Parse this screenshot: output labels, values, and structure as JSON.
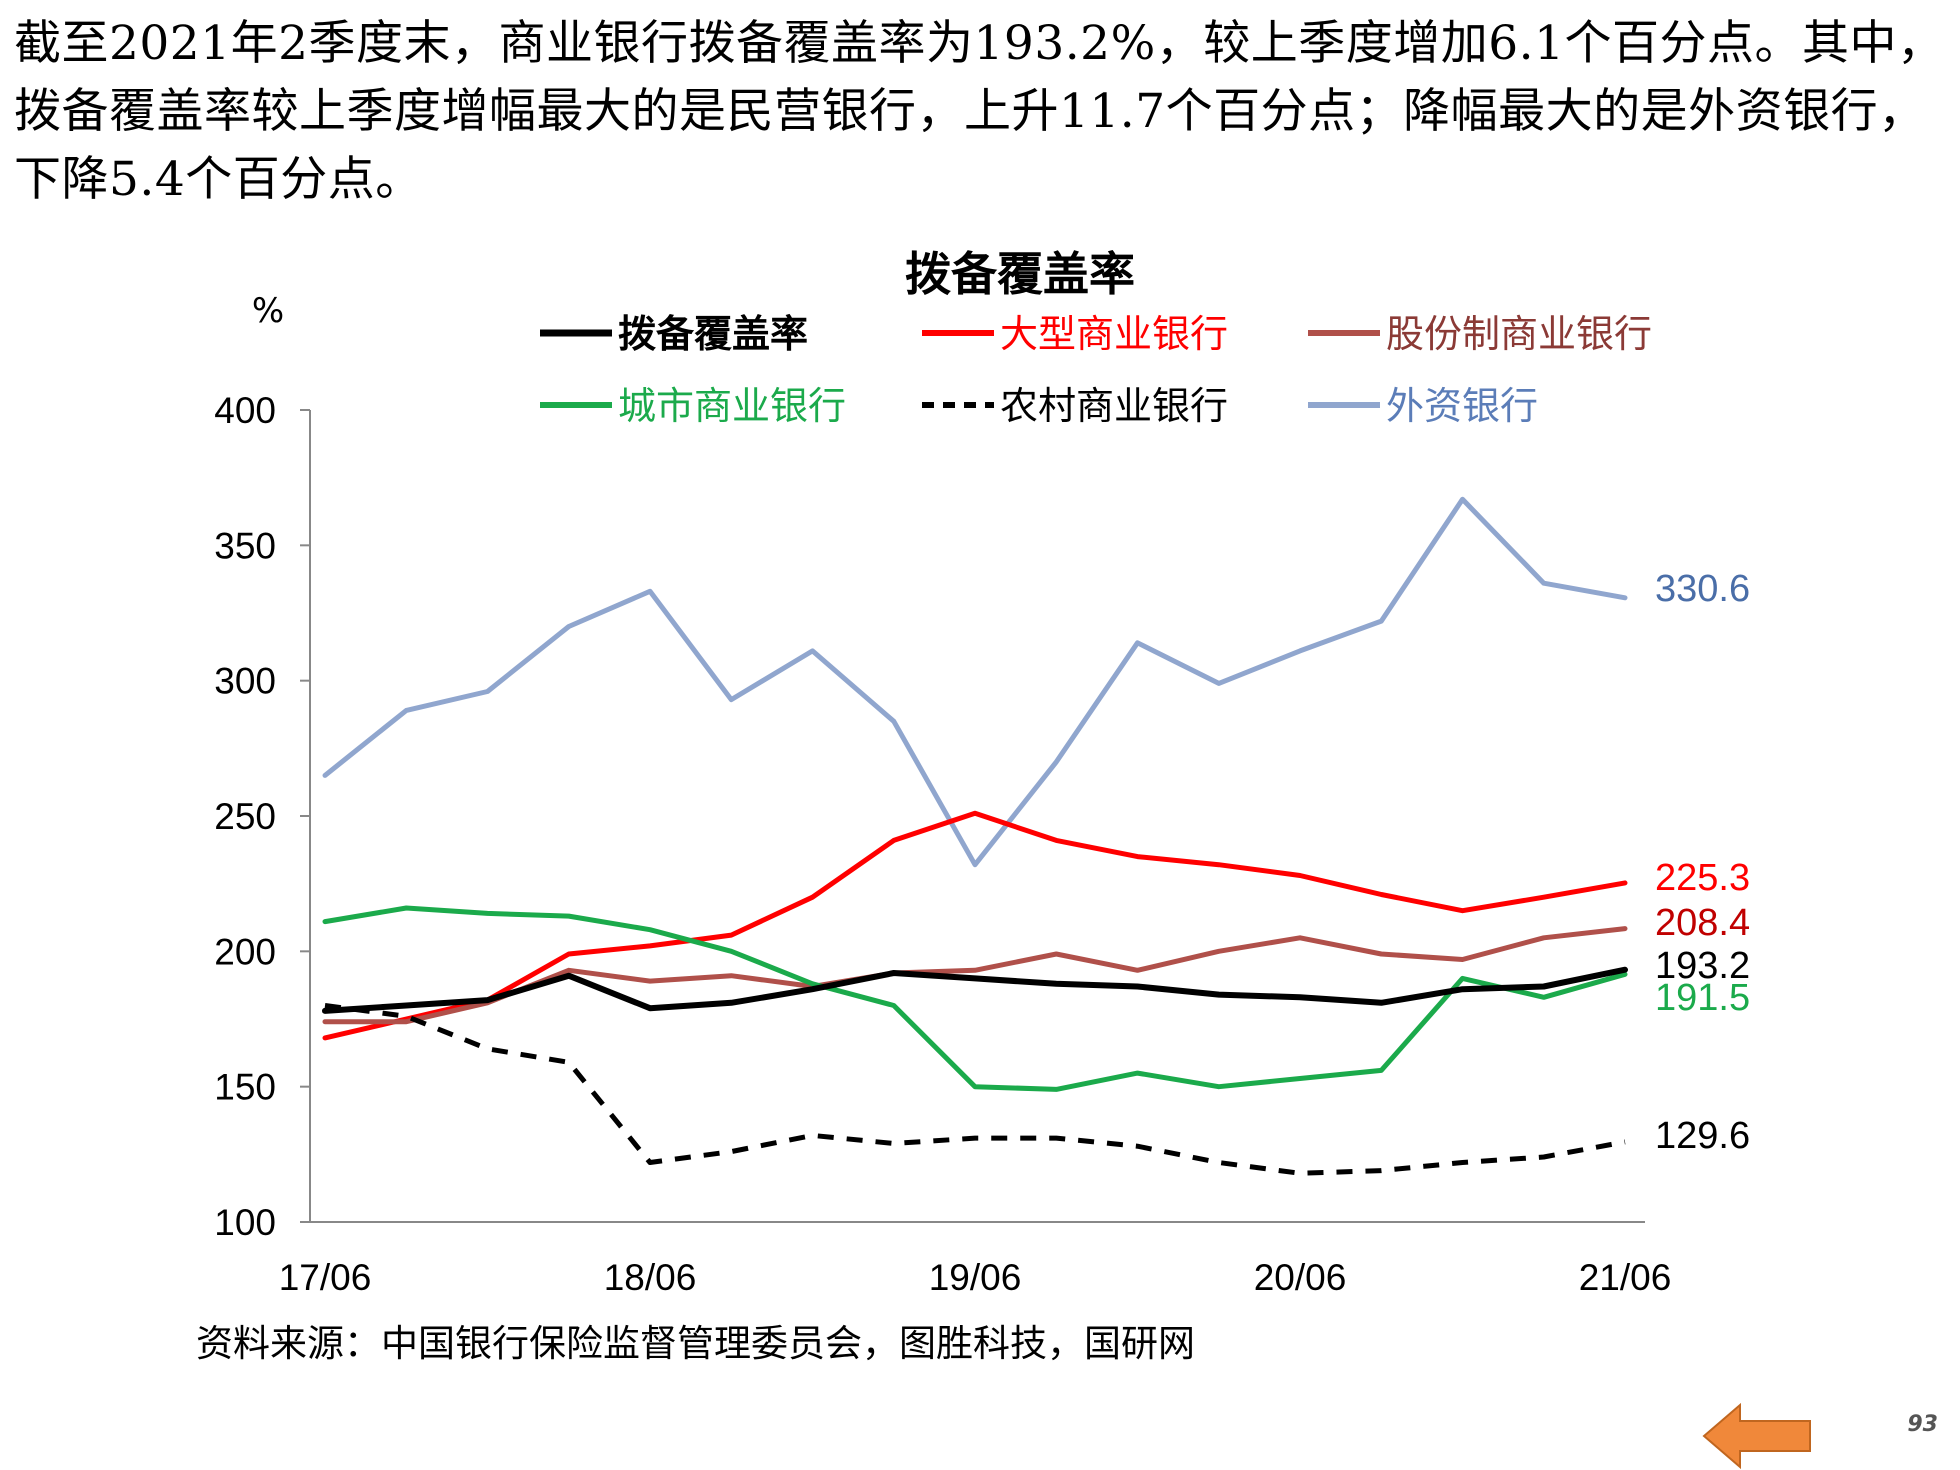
{
  "intro_text": "截至2021年2季度末，商业银行拨备覆盖率为193.2%，较上季度增加6.1个百分点。其中，拨备覆盖率较上季度增幅最大的是民营银行，上升11.7个百分点；降幅最大的是外资银行，下降5.4个百分点。",
  "source_note": "资料来源：中国银行保险监督管理委员会，图胜科技，国研网",
  "page_number": "93",
  "nav": {
    "back_icon": "left-arrow-icon",
    "back_color": "#F0883A"
  },
  "chart_data": {
    "type": "line",
    "title": "拨备覆盖率",
    "ylabel": "%",
    "xlabel": "",
    "ylim": [
      100,
      400
    ],
    "yticks": [
      100,
      150,
      200,
      250,
      300,
      350,
      400
    ],
    "x_tick_labels": [
      "17/06",
      "18/06",
      "19/06",
      "20/06",
      "21/06"
    ],
    "x_tick_indices": [
      0,
      4,
      8,
      12,
      16
    ],
    "categories": [
      "17/06",
      "17/09",
      "17/12",
      "18/03",
      "18/06",
      "18/09",
      "18/12",
      "19/03",
      "19/06",
      "19/09",
      "19/12",
      "20/03",
      "20/06",
      "20/09",
      "20/12",
      "21/03",
      "21/06"
    ],
    "grid": false,
    "legend_position": "top",
    "series": [
      {
        "name": "拨备覆盖率",
        "color": "#000000",
        "dash": false,
        "width": 6,
        "values": [
          178,
          180,
          182,
          191,
          179,
          181,
          186,
          192,
          190,
          188,
          187,
          184,
          183,
          181,
          186,
          187,
          193.2
        ],
        "end_label": "193.2"
      },
      {
        "name": "大型商业银行",
        "color": "#FF0000",
        "dash": false,
        "width": 5,
        "values": [
          168,
          175,
          182,
          199,
          202,
          206,
          220,
          241,
          251,
          241,
          235,
          232,
          228,
          221,
          215,
          220,
          225.3
        ],
        "end_label": "225.3"
      },
      {
        "name": "股份制商业银行",
        "color": "#B0504A",
        "dash": false,
        "width": 5,
        "values": [
          174,
          174,
          181,
          193,
          189,
          191,
          187,
          192,
          193,
          199,
          193,
          200,
          205,
          199,
          197,
          205,
          208.4
        ],
        "end_label": "208.4"
      },
      {
        "name": "城市商业银行",
        "color": "#1BAA4B",
        "dash": false,
        "width": 5,
        "values": [
          211,
          216,
          214,
          213,
          208,
          200,
          188,
          180,
          150,
          149,
          155,
          150,
          153,
          156,
          190,
          183,
          191.5
        ],
        "end_label": "191.5"
      },
      {
        "name": "农村商业银行",
        "color": "#000000",
        "dash": true,
        "width": 5,
        "values": [
          180,
          176,
          164,
          159,
          122,
          126,
          132,
          129,
          131,
          131,
          128,
          122,
          118,
          119,
          122,
          124,
          129.6
        ],
        "end_label": "129.6"
      },
      {
        "name": "外资银行",
        "color": "#90A6CE",
        "dash": false,
        "width": 5,
        "values": [
          265,
          289,
          296,
          320,
          333,
          293,
          311,
          285,
          232,
          270,
          314,
          299,
          311,
          322,
          367,
          336,
          330.6
        ],
        "end_label": "330.6"
      }
    ],
    "end_label_colors": [
      "#000000",
      "#FF0000",
      "#C00000",
      "#1BAA4B",
      "#000000",
      "#4A6EA8"
    ]
  }
}
